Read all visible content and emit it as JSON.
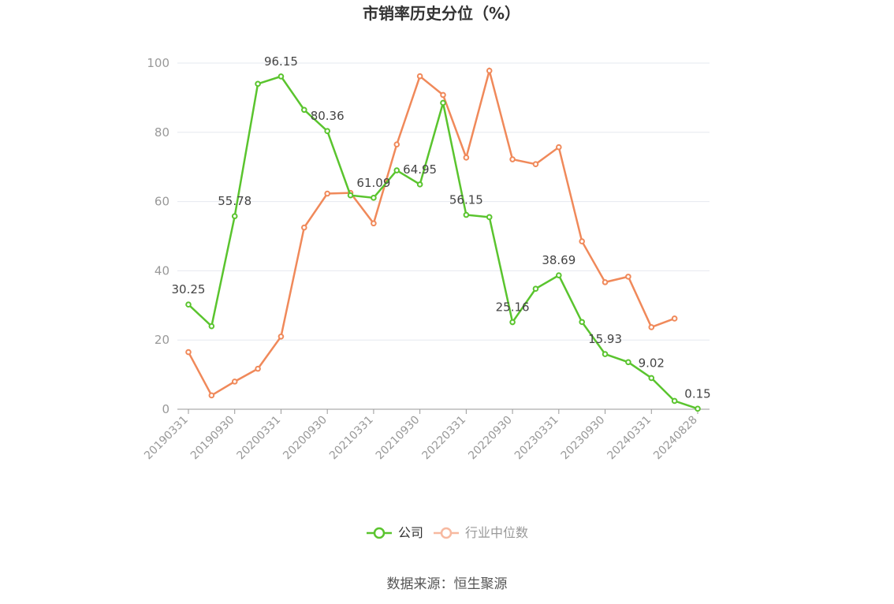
{
  "chart_data": {
    "type": "line",
    "title": "市销率历史分位（%）",
    "categories": [
      "20190331",
      null,
      "20190930",
      null,
      "20200331",
      null,
      "20200930",
      null,
      "20210331",
      null,
      "20210930",
      null,
      "20220331",
      null,
      "20220930",
      null,
      "20230331",
      null,
      "20230930",
      null,
      "20240331",
      null,
      "20240828"
    ],
    "series": [
      {
        "name": "公司",
        "color": "#5ac42e",
        "values": [
          30.25,
          24,
          55.78,
          94,
          96.15,
          86.5,
          80.36,
          61.8,
          61.09,
          69,
          64.95,
          88.5,
          56.15,
          55.5,
          25.16,
          34.8,
          38.69,
          25.2,
          15.93,
          13.6,
          9.02,
          2.4,
          0.15
        ]
      },
      {
        "name": "行业中位数",
        "color": "#f0895a",
        "values": [
          16.5,
          4,
          8,
          11.7,
          21,
          52.5,
          62.3,
          62.5,
          53.7,
          76.5,
          96.2,
          90.8,
          72.7,
          97.8,
          72.2,
          70.8,
          75.7,
          48.5,
          36.7,
          38.3,
          23.7,
          26.2,
          null
        ]
      }
    ],
    "ylim": [
      0,
      100
    ],
    "yticks": [
      0,
      20,
      40,
      60,
      80,
      100
    ],
    "grid": true,
    "source": "数据来源：恒生聚源"
  }
}
